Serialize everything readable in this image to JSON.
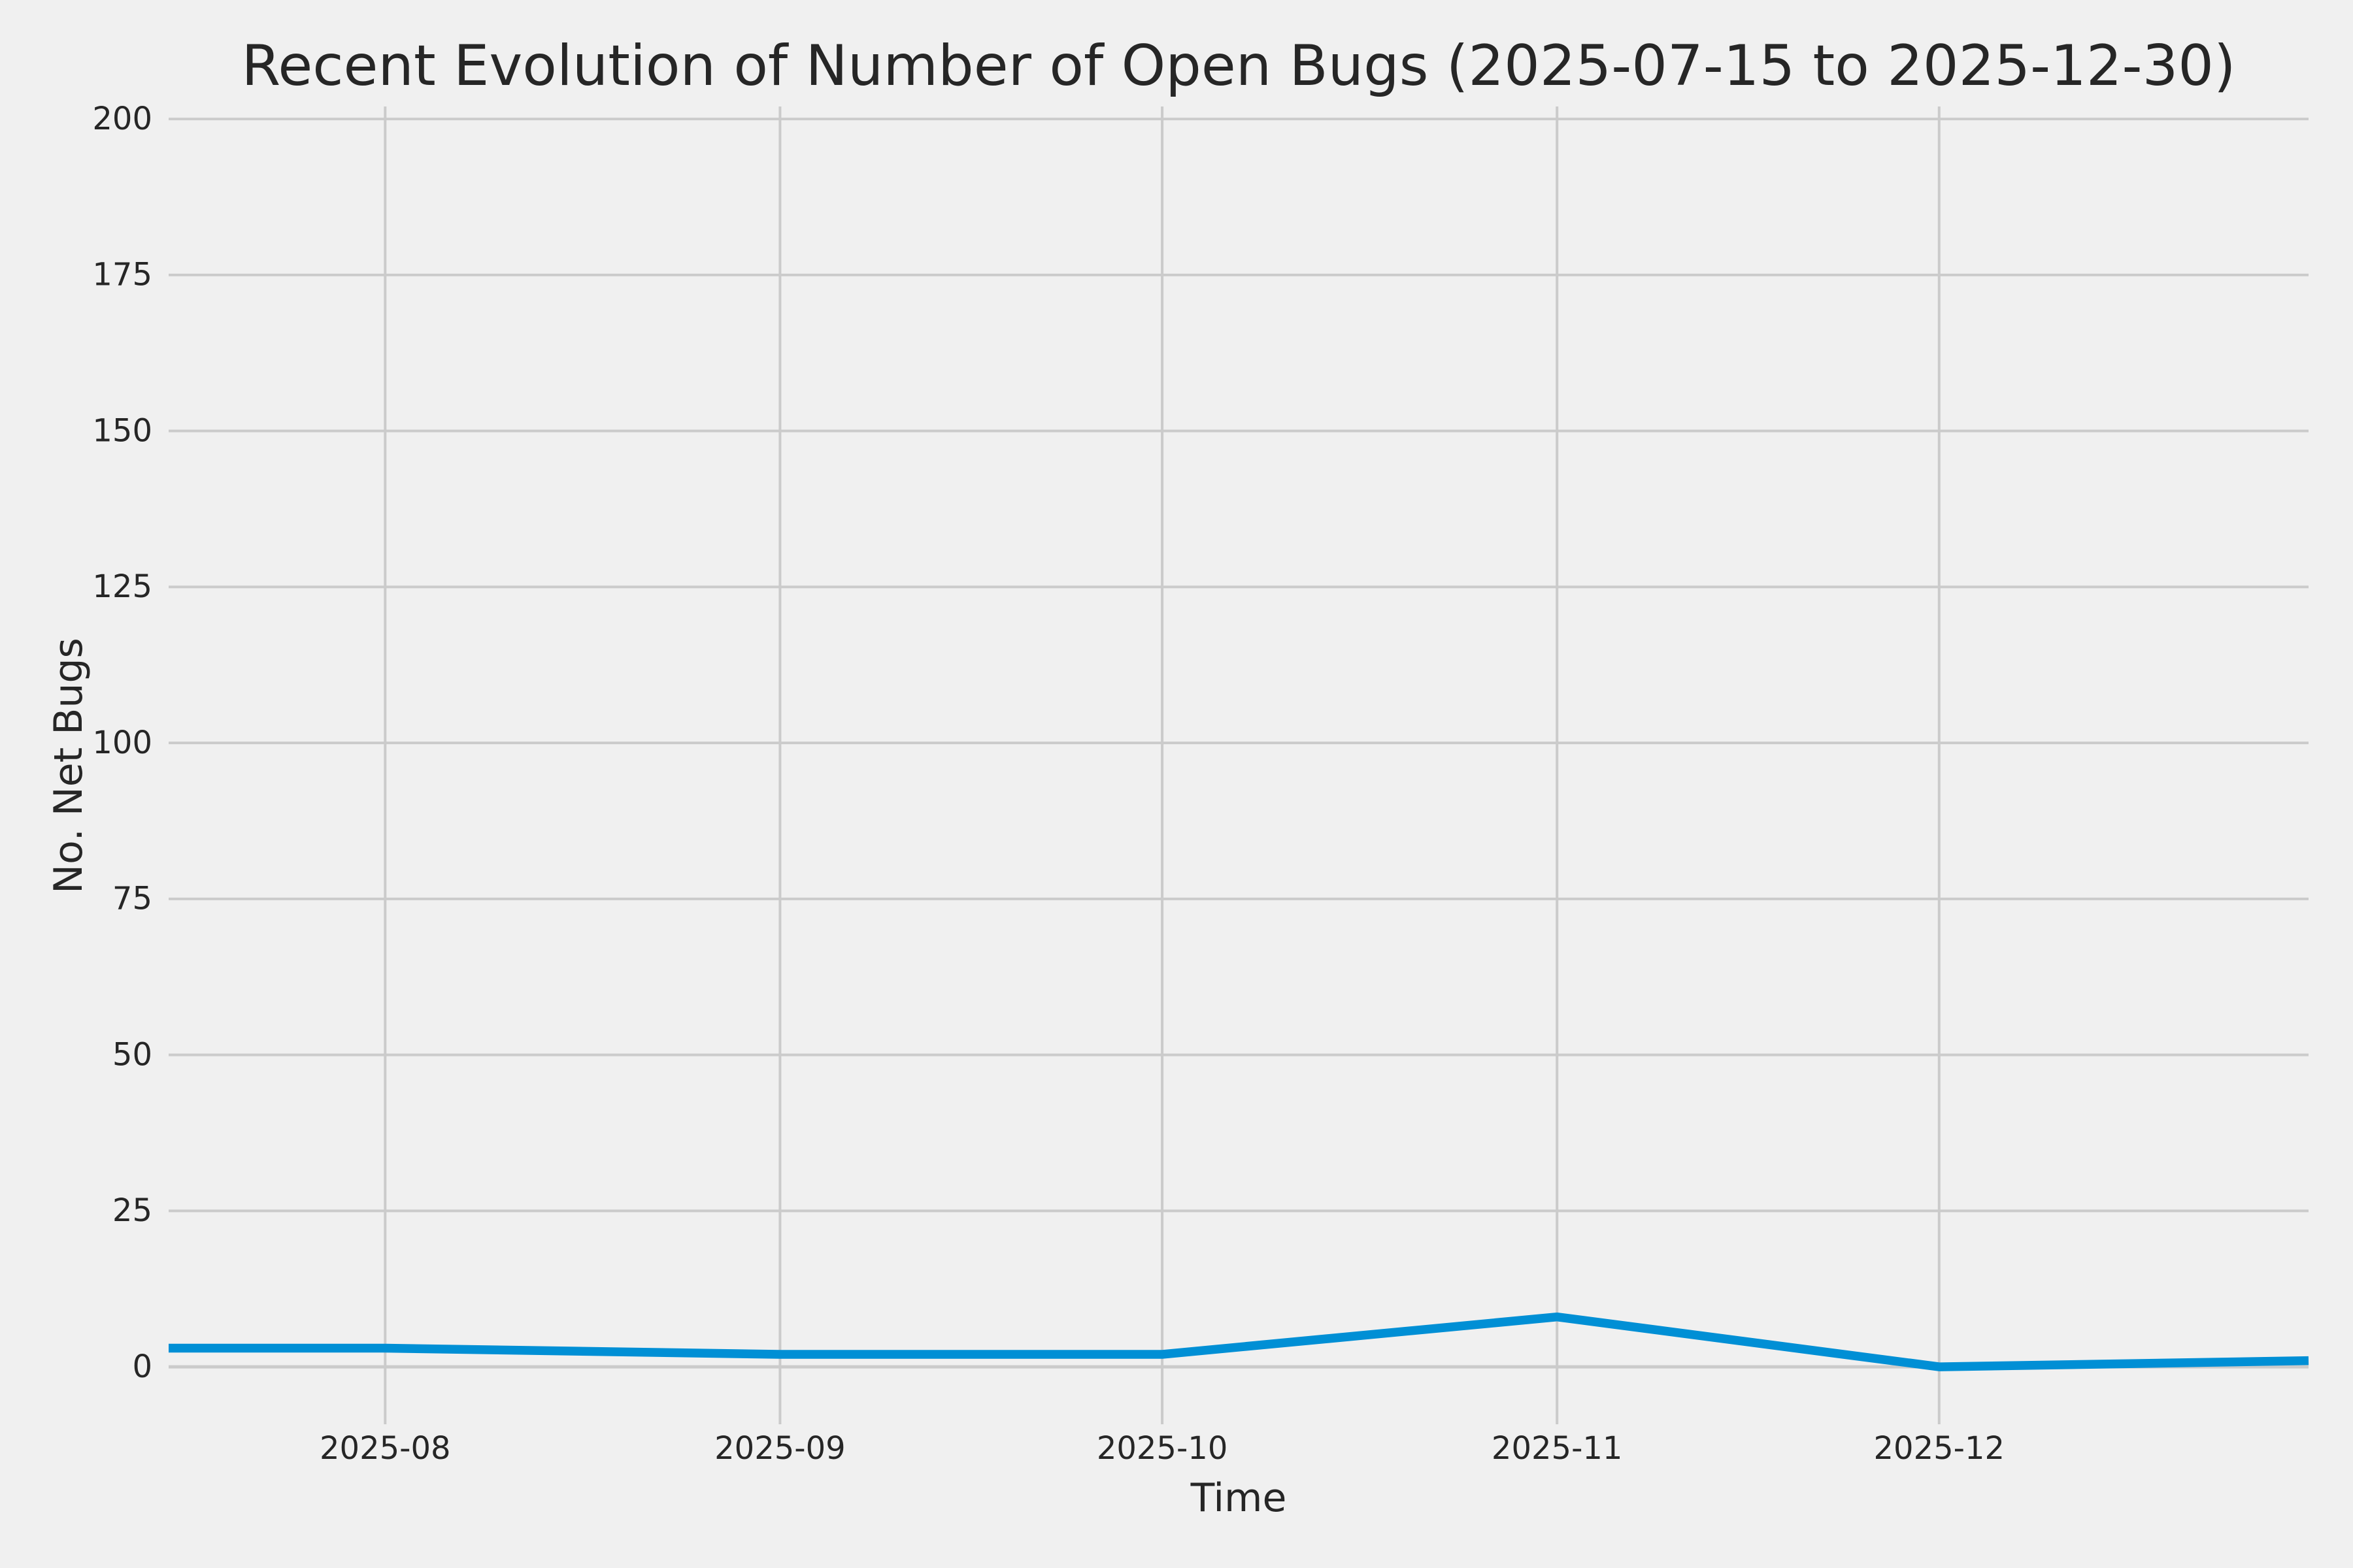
{
  "chart_data": {
    "type": "line",
    "title": "Recent Evolution of Number of Open Bugs (2025-07-15 to 2025-12-30)",
    "xlabel": "Time",
    "ylabel": "No. Net Bugs",
    "x": [
      "2025-07-15",
      "2025-08-01",
      "2025-09-01",
      "2025-10-01",
      "2025-11-01",
      "2025-12-01",
      "2025-12-30"
    ],
    "x_days": [
      0,
      17,
      48,
      78,
      109,
      139,
      168
    ],
    "series": [
      {
        "name": "open-bugs",
        "values": [
          3,
          3,
          2,
          2,
          8,
          0,
          1
        ]
      }
    ],
    "x_ticks": [
      {
        "day": 17,
        "label": "2025-08"
      },
      {
        "day": 48,
        "label": "2025-09"
      },
      {
        "day": 78,
        "label": "2025-10"
      },
      {
        "day": 109,
        "label": "2025-11"
      },
      {
        "day": 139,
        "label": "2025-12"
      }
    ],
    "y_ticks": [
      0,
      25,
      50,
      75,
      100,
      125,
      150,
      175,
      200
    ],
    "xlim_days": [
      0,
      168
    ],
    "ylim": [
      -9.2,
      202
    ],
    "grid": true,
    "legend": false,
    "colors": {
      "background": "#F0F0F0",
      "grid": "#CBCBCB",
      "line": "#008FD5",
      "text": "#262626"
    }
  }
}
